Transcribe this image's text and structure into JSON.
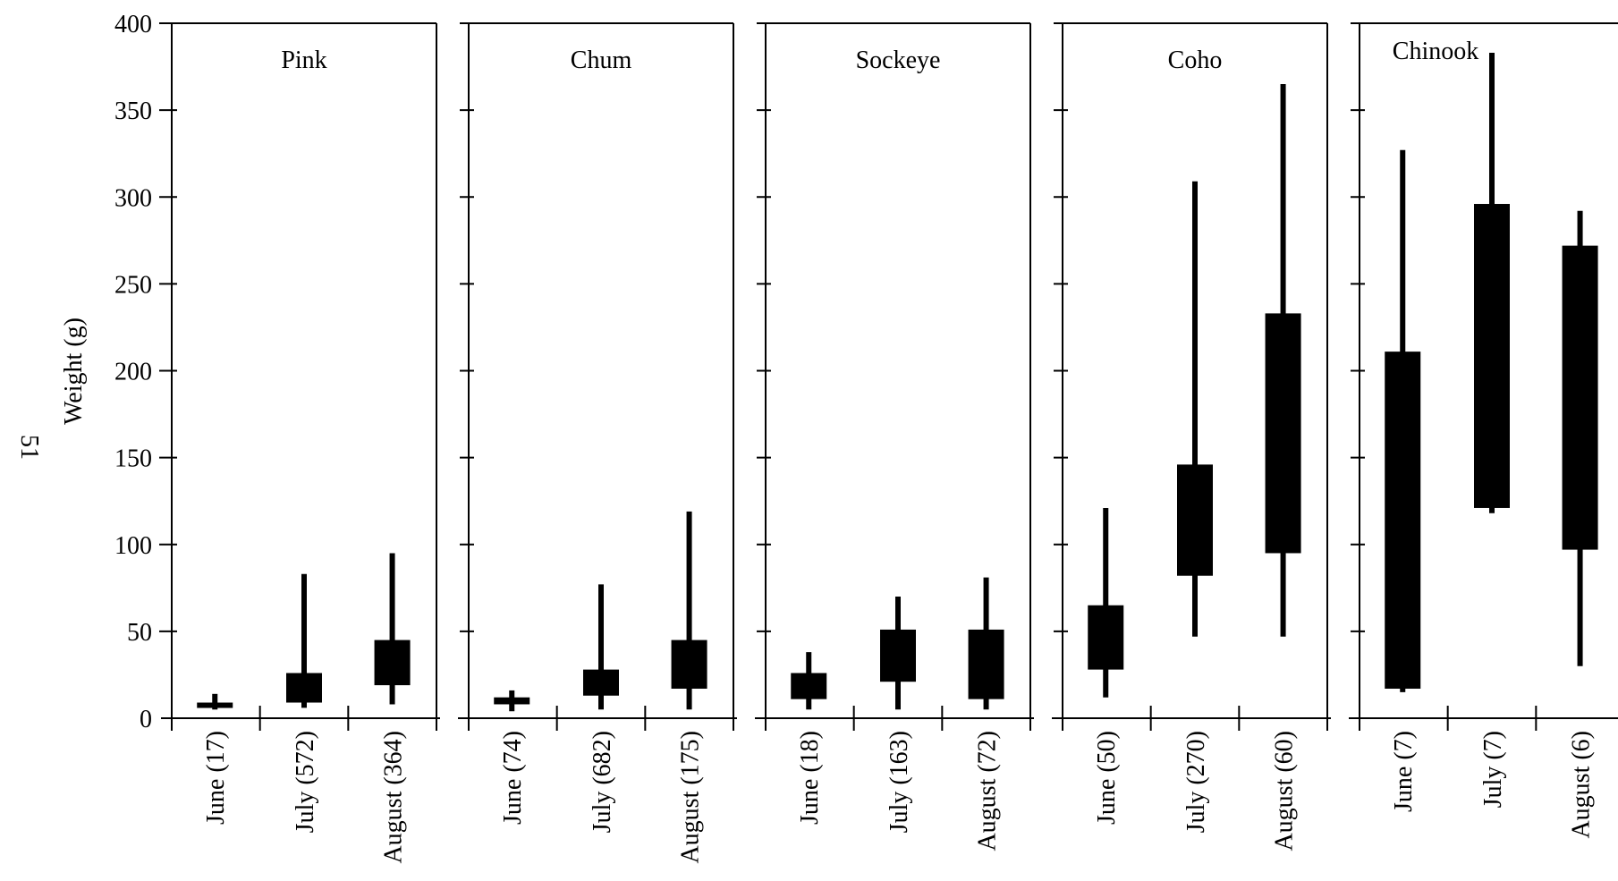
{
  "page_number": "51",
  "chart_data": {
    "type": "box",
    "ylabel": "Weight (g)",
    "ylim": [
      0,
      400
    ],
    "yticks": [
      0,
      50,
      100,
      150,
      200,
      250,
      300,
      350,
      400
    ],
    "panels": [
      {
        "title": "Pink",
        "boxes": [
          {
            "label": "June (17)",
            "whisker_low": 5,
            "q1": 6,
            "q3": 9,
            "whisker_high": 14
          },
          {
            "label": "July (572)",
            "whisker_low": 6,
            "q1": 9,
            "q3": 26,
            "whisker_high": 83
          },
          {
            "label": "August (364)",
            "whisker_low": 8,
            "q1": 19,
            "q3": 45,
            "whisker_high": 95
          }
        ]
      },
      {
        "title": "Chum",
        "boxes": [
          {
            "label": "June (74)",
            "whisker_low": 4,
            "q1": 8,
            "q3": 12,
            "whisker_high": 16
          },
          {
            "label": "July (682)",
            "whisker_low": 5,
            "q1": 13,
            "q3": 28,
            "whisker_high": 77
          },
          {
            "label": "August (175)",
            "whisker_low": 5,
            "q1": 17,
            "q3": 45,
            "whisker_high": 119
          }
        ]
      },
      {
        "title": "Sockeye",
        "boxes": [
          {
            "label": "June (18)",
            "whisker_low": 5,
            "q1": 11,
            "q3": 26,
            "whisker_high": 38
          },
          {
            "label": "July (163)",
            "whisker_low": 5,
            "q1": 21,
            "q3": 51,
            "whisker_high": 70
          },
          {
            "label": "August (72)",
            "whisker_low": 5,
            "q1": 11,
            "q3": 51,
            "whisker_high": 81
          }
        ]
      },
      {
        "title": "Coho",
        "boxes": [
          {
            "label": "June (50)",
            "whisker_low": 12,
            "q1": 28,
            "q3": 65,
            "whisker_high": 121
          },
          {
            "label": "July (270)",
            "whisker_low": 47,
            "q1": 82,
            "q3": 146,
            "whisker_high": 309
          },
          {
            "label": "August (60)",
            "whisker_low": 47,
            "q1": 95,
            "q3": 233,
            "whisker_high": 365
          }
        ]
      },
      {
        "title": "Chinook",
        "boxes": [
          {
            "label": "June (7)",
            "whisker_low": 15,
            "q1": 17,
            "q3": 211,
            "whisker_high": 327
          },
          {
            "label": "July (7)",
            "whisker_low": 118,
            "q1": 121,
            "q3": 296,
            "whisker_high": 383
          },
          {
            "label": "August (6)",
            "whisker_low": 30,
            "q1": 97,
            "q3": 272,
            "whisker_high": 292
          }
        ]
      }
    ]
  }
}
